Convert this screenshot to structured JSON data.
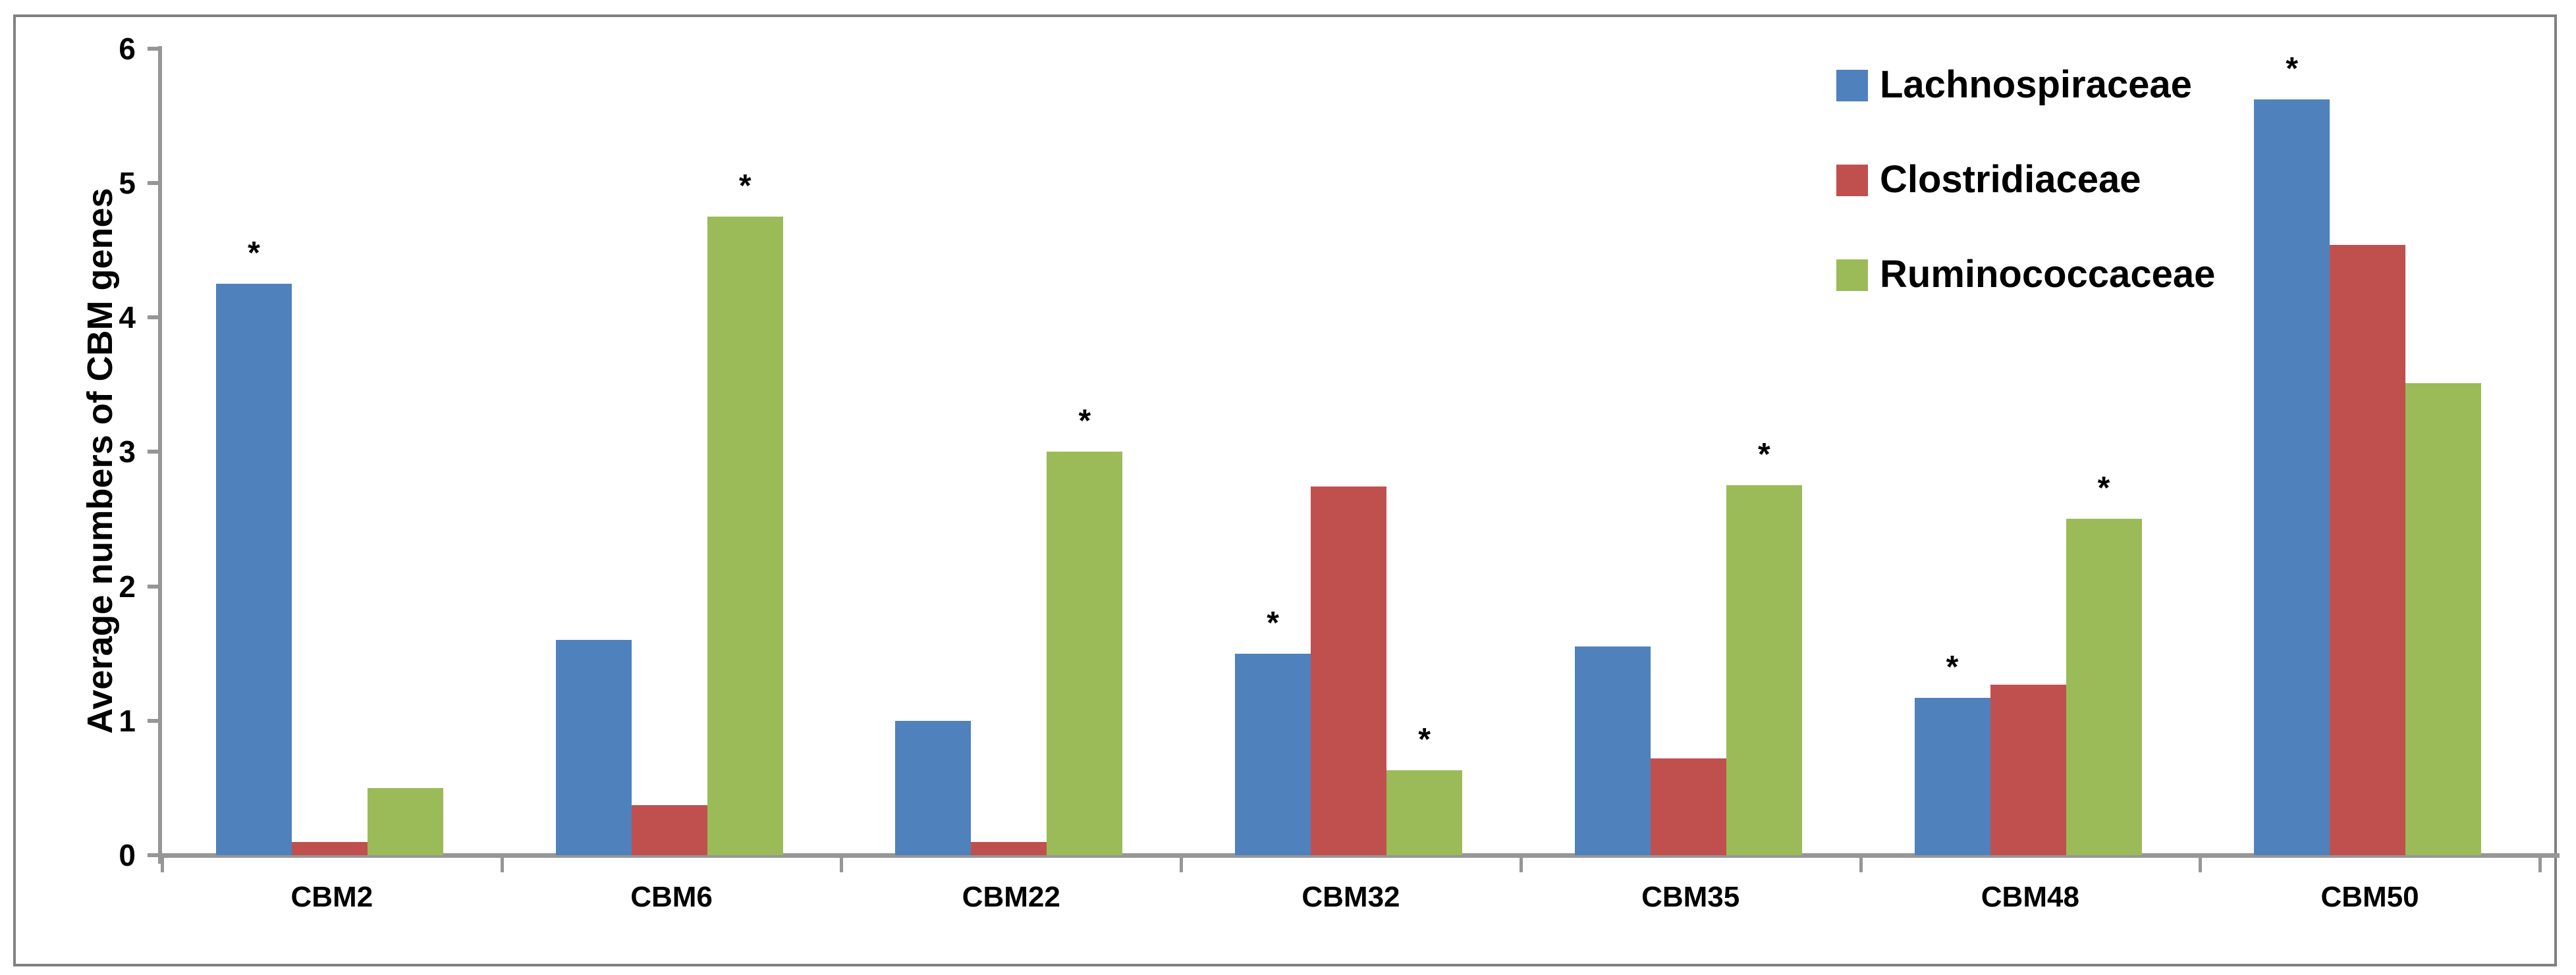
{
  "figure": {
    "background": "#ffffff",
    "frame_color": "#808080",
    "axis_color": "#969696",
    "text_color": "#000000"
  },
  "chart_data": {
    "type": "bar",
    "title": "",
    "xlabel": "",
    "ylabel": "Average numbers of CBM genes",
    "ylim": [
      0,
      6
    ],
    "ytick_labels": [
      "0",
      "1",
      "2",
      "3",
      "4",
      "5",
      "6"
    ],
    "grid": "off",
    "legend_position": "top-right",
    "significance_marker": "*",
    "categories": [
      "CBM2",
      "CBM6",
      "CBM22",
      "CBM32",
      "CBM35",
      "CBM48",
      "CBM50"
    ],
    "series": [
      {
        "name": "Lachnospiraceae",
        "color": "#4F81BD",
        "values": [
          4.25,
          1.6,
          1.0,
          1.5,
          1.55,
          1.17,
          5.62
        ],
        "significant": [
          true,
          false,
          false,
          true,
          false,
          true,
          true
        ]
      },
      {
        "name": "Clostridiaceae",
        "color": "#C0504D",
        "values": [
          0.1,
          0.37,
          0.1,
          2.74,
          0.72,
          1.27,
          4.54
        ],
        "significant": [
          false,
          false,
          false,
          false,
          false,
          false,
          false
        ]
      },
      {
        "name": "Ruminococcaceae",
        "color": "#9BBB59",
        "values": [
          0.5,
          4.75,
          3.0,
          0.63,
          2.75,
          2.5,
          3.51
        ],
        "significant": [
          false,
          true,
          true,
          true,
          true,
          true,
          false
        ]
      }
    ]
  }
}
